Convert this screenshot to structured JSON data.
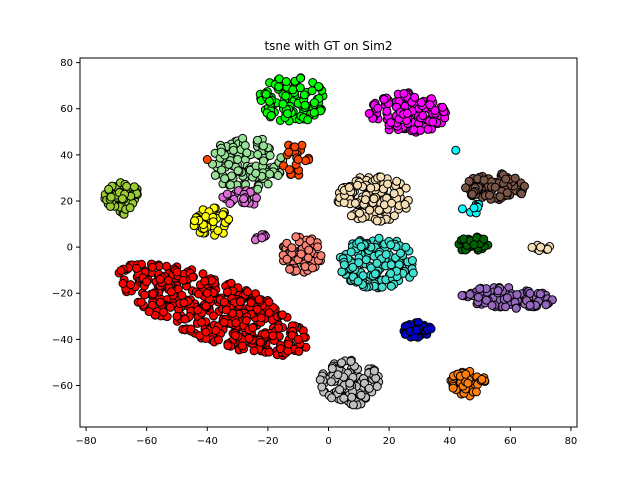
{
  "chart_data": {
    "type": "scatter",
    "title": "tsne with GT on Sim2",
    "xlabel": "",
    "ylabel": "",
    "xlim": [
      -82,
      82
    ],
    "ylim": [
      -78,
      82
    ],
    "xticks": [
      -80,
      -60,
      -40,
      -20,
      0,
      20,
      40,
      60,
      80
    ],
    "yticks": [
      -60,
      -40,
      -20,
      0,
      20,
      40,
      60,
      80
    ],
    "grid": false,
    "legend": "none",
    "marker_edge_color": "#000000",
    "series": [
      {
        "color": "#ff0000",
        "shape": "ellipse",
        "cx": -38,
        "cy": -27,
        "rx": 35,
        "ry": 13,
        "angle": -28,
        "count": 420,
        "points": [
          [
            -60,
            -15
          ],
          [
            -40,
            -20
          ],
          [
            -25,
            -35
          ],
          [
            -10,
            -40
          ],
          [
            -50,
            -30
          ]
        ]
      },
      {
        "color": "#00ff00",
        "shape": "ellipse",
        "cx": -12,
        "cy": 64,
        "rx": 11,
        "ry": 10,
        "angle": 0,
        "count": 110,
        "points": [
          [
            -15,
            62
          ],
          [
            -8,
            66
          ]
        ]
      },
      {
        "color": "#98e098",
        "shape": "ellipse",
        "cx": -27,
        "cy": 36,
        "rx": 12,
        "ry": 12,
        "angle": 0,
        "count": 130,
        "points": [
          [
            -30,
            38
          ],
          [
            -24,
            32
          ]
        ]
      },
      {
        "color": "#ff4500",
        "shape": "ellipse",
        "cx": -11,
        "cy": 38,
        "rx": 5,
        "ry": 7,
        "angle": 0,
        "count": 25,
        "points": [
          [
            -40,
            38
          ],
          [
            -10,
            38
          ]
        ]
      },
      {
        "color": "#da70d6",
        "shape": "ellipse",
        "cx": -28,
        "cy": 21,
        "rx": 7,
        "ry": 4,
        "angle": 0,
        "count": 25,
        "points": [
          [
            -28,
            21
          ]
        ]
      },
      {
        "color": "#9acd32",
        "shape": "ellipse",
        "cx": -68,
        "cy": 21,
        "rx": 6,
        "ry": 7,
        "angle": 0,
        "count": 60,
        "points": [
          [
            -68,
            21
          ]
        ]
      },
      {
        "color": "#ffff00",
        "shape": "ellipse",
        "cx": -38,
        "cy": 11,
        "rx": 7,
        "ry": 6,
        "angle": 0,
        "count": 50,
        "points": [
          [
            -38,
            11
          ]
        ]
      },
      {
        "color": "#da70d6",
        "shape": "ellipse",
        "cx": -22,
        "cy": 4,
        "rx": 3,
        "ry": 1.5,
        "angle": 0,
        "count": 6,
        "points": [
          [
            -22,
            4
          ]
        ]
      },
      {
        "color": "#fa8072",
        "shape": "ellipse",
        "cx": -9,
        "cy": -3,
        "rx": 7,
        "ry": 8,
        "angle": 0,
        "count": 60,
        "points": [
          [
            -9,
            -3
          ]
        ]
      },
      {
        "color": "#ff00ff",
        "shape": "ellipse",
        "cx": 26,
        "cy": 58,
        "rx": 13,
        "ry": 9,
        "angle": 0,
        "count": 130,
        "points": [
          [
            26,
            58
          ]
        ]
      },
      {
        "color": "#f5deb3",
        "shape": "ellipse",
        "cx": 15,
        "cy": 21,
        "rx": 12,
        "ry": 10,
        "angle": 0,
        "count": 130,
        "points": [
          [
            15,
            21
          ]
        ]
      },
      {
        "color": "#40e0d0",
        "shape": "ellipse",
        "cx": 16,
        "cy": -7,
        "rx": 13,
        "ry": 11,
        "angle": 0,
        "count": 150,
        "points": [
          [
            16,
            -7
          ]
        ]
      },
      {
        "color": "#0000cd",
        "shape": "ellipse",
        "cx": 29,
        "cy": -36,
        "rx": 5,
        "ry": 3.5,
        "angle": 0,
        "count": 35,
        "points": [
          [
            29,
            -36
          ]
        ]
      },
      {
        "color": "#c0c0c0",
        "shape": "ellipse",
        "cx": 7,
        "cy": -59,
        "rx": 10,
        "ry": 10,
        "angle": 0,
        "count": 110,
        "points": [
          [
            7,
            -59
          ]
        ]
      },
      {
        "color": "#795548",
        "shape": "ellipse",
        "cx": 55,
        "cy": 26,
        "rx": 10,
        "ry": 6,
        "angle": 0,
        "count": 80,
        "points": [
          [
            55,
            26
          ]
        ]
      },
      {
        "color": "#00ffff",
        "shape": "ellipse",
        "cx": 48,
        "cy": 17,
        "rx": 4,
        "ry": 2.5,
        "angle": 0,
        "count": 8,
        "points": [
          [
            42,
            42
          ],
          [
            48,
            17
          ]
        ]
      },
      {
        "color": "#006400",
        "shape": "ellipse",
        "cx": 48,
        "cy": 1,
        "rx": 5,
        "ry": 4,
        "angle": 0,
        "count": 35,
        "points": [
          [
            48,
            1
          ]
        ]
      },
      {
        "color": "#f5deb3",
        "shape": "ellipse",
        "cx": 70,
        "cy": 0,
        "rx": 3,
        "ry": 2,
        "angle": 0,
        "count": 10,
        "points": [
          [
            70,
            0
          ]
        ]
      },
      {
        "color": "#9467bd",
        "shape": "ellipse",
        "cx": 59,
        "cy": -22,
        "rx": 15,
        "ry": 4.5,
        "angle": -4,
        "count": 110,
        "points": [
          [
            59,
            -22
          ]
        ]
      },
      {
        "color": "#ff7f0e",
        "shape": "ellipse",
        "cx": 46,
        "cy": -59,
        "rx": 6,
        "ry": 6,
        "angle": 0,
        "count": 50,
        "points": [
          [
            46,
            -59
          ]
        ]
      }
    ]
  }
}
